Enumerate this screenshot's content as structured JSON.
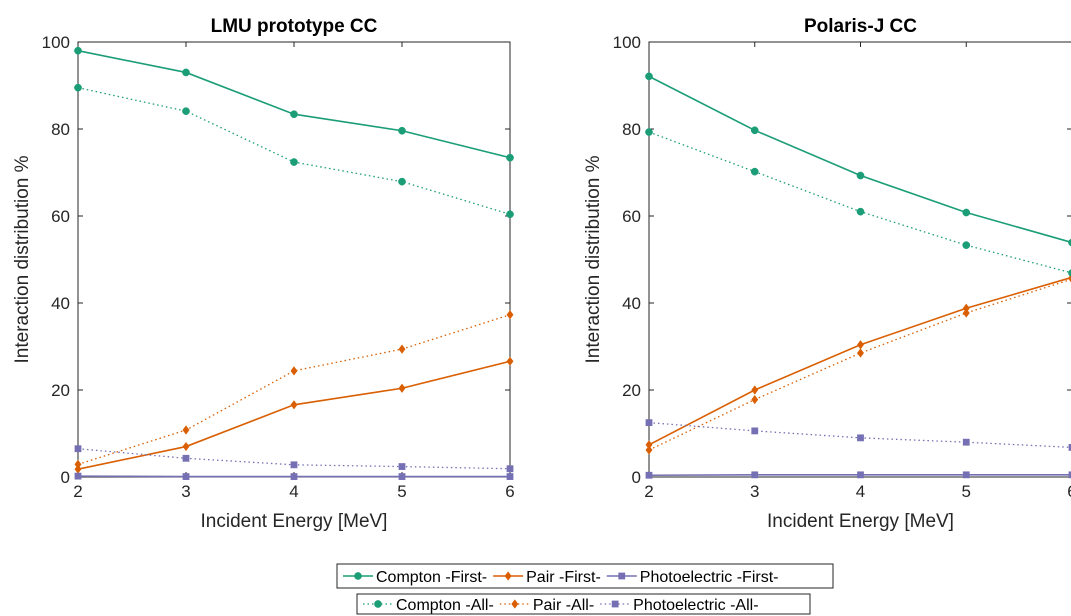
{
  "colors": {
    "compton": "#1b9e77",
    "pair": "#d95f02",
    "photoelectric": "#7570b3"
  },
  "chart_data": [
    {
      "type": "line",
      "title": "LMU prototype CC",
      "xlabel": "Incident Energy [MeV]",
      "ylabel": "Interaction distribution %",
      "xlim": [
        2,
        6
      ],
      "ylim": [
        0,
        100
      ],
      "xticks": [
        "2",
        "3",
        "4",
        "5",
        "6"
      ],
      "yticks": [
        "0",
        "20",
        "40",
        "60",
        "80",
        "100"
      ],
      "grid": false,
      "x": [
        2,
        3,
        4,
        5,
        6
      ],
      "series": [
        {
          "name": "Compton -First-",
          "style": "solid",
          "marker": "circle",
          "color": "#1b9e77",
          "values": [
            98.0,
            93.0,
            83.4,
            79.6,
            73.4
          ]
        },
        {
          "name": "Pair -First-",
          "style": "solid",
          "marker": "diamond",
          "color": "#d95f02",
          "values": [
            1.8,
            7.0,
            16.6,
            20.4,
            26.6
          ]
        },
        {
          "name": "Photoelectric -First-",
          "style": "solid",
          "marker": "square",
          "color": "#7570b3",
          "values": [
            0.2,
            0.1,
            0.1,
            0.1,
            0.1
          ]
        },
        {
          "name": "Compton -All-",
          "style": "dotted",
          "marker": "circle",
          "color": "#1b9e77",
          "values": [
            89.5,
            84.1,
            72.4,
            67.9,
            60.4
          ]
        },
        {
          "name": "Pair -All-",
          "style": "dotted",
          "marker": "diamond",
          "color": "#d95f02",
          "values": [
            2.9,
            10.8,
            24.4,
            29.4,
            37.3
          ]
        },
        {
          "name": "Photoelectric -All-",
          "style": "dotted",
          "marker": "square",
          "color": "#7570b3",
          "values": [
            6.5,
            4.3,
            2.8,
            2.4,
            1.9
          ]
        }
      ]
    },
    {
      "type": "line",
      "title": "Polaris-J CC",
      "xlabel": "Incident Energy [MeV]",
      "ylabel": "Interaction distribution %",
      "xlim": [
        2,
        6
      ],
      "ylim": [
        0,
        100
      ],
      "xticks": [
        "2",
        "3",
        "4",
        "5",
        "6"
      ],
      "yticks": [
        "0",
        "20",
        "40",
        "60",
        "80",
        "100"
      ],
      "grid": false,
      "x": [
        2,
        3,
        4,
        5,
        6
      ],
      "series": [
        {
          "name": "Compton -First-",
          "style": "solid",
          "marker": "circle",
          "color": "#1b9e77",
          "values": [
            92.1,
            79.7,
            69.3,
            60.8,
            53.9
          ]
        },
        {
          "name": "Pair -First-",
          "style": "solid",
          "marker": "diamond",
          "color": "#d95f02",
          "values": [
            7.4,
            20.0,
            30.4,
            38.8,
            45.9
          ]
        },
        {
          "name": "Photoelectric -First-",
          "style": "solid",
          "marker": "square",
          "color": "#7570b3",
          "values": [
            0.4,
            0.5,
            0.5,
            0.5,
            0.5
          ]
        },
        {
          "name": "Compton -All-",
          "style": "dotted",
          "marker": "circle",
          "color": "#1b9e77",
          "values": [
            79.3,
            70.2,
            61.0,
            53.3,
            46.9
          ]
        },
        {
          "name": "Pair -All-",
          "style": "dotted",
          "marker": "diamond",
          "color": "#d95f02",
          "values": [
            6.2,
            17.8,
            28.5,
            37.7,
            45.5
          ]
        },
        {
          "name": "Photoelectric -All-",
          "style": "dotted",
          "marker": "square",
          "color": "#7570b3",
          "values": [
            12.5,
            10.6,
            9.0,
            8.0,
            6.8
          ]
        }
      ]
    }
  ],
  "legend": {
    "placement": "bottom-center",
    "rows": [
      [
        "Compton -First-",
        "Pair -First-",
        "Photoelectric -First-"
      ],
      [
        "Compton -All-",
        "Pair -All-",
        "Photoelectric -All-"
      ]
    ]
  }
}
